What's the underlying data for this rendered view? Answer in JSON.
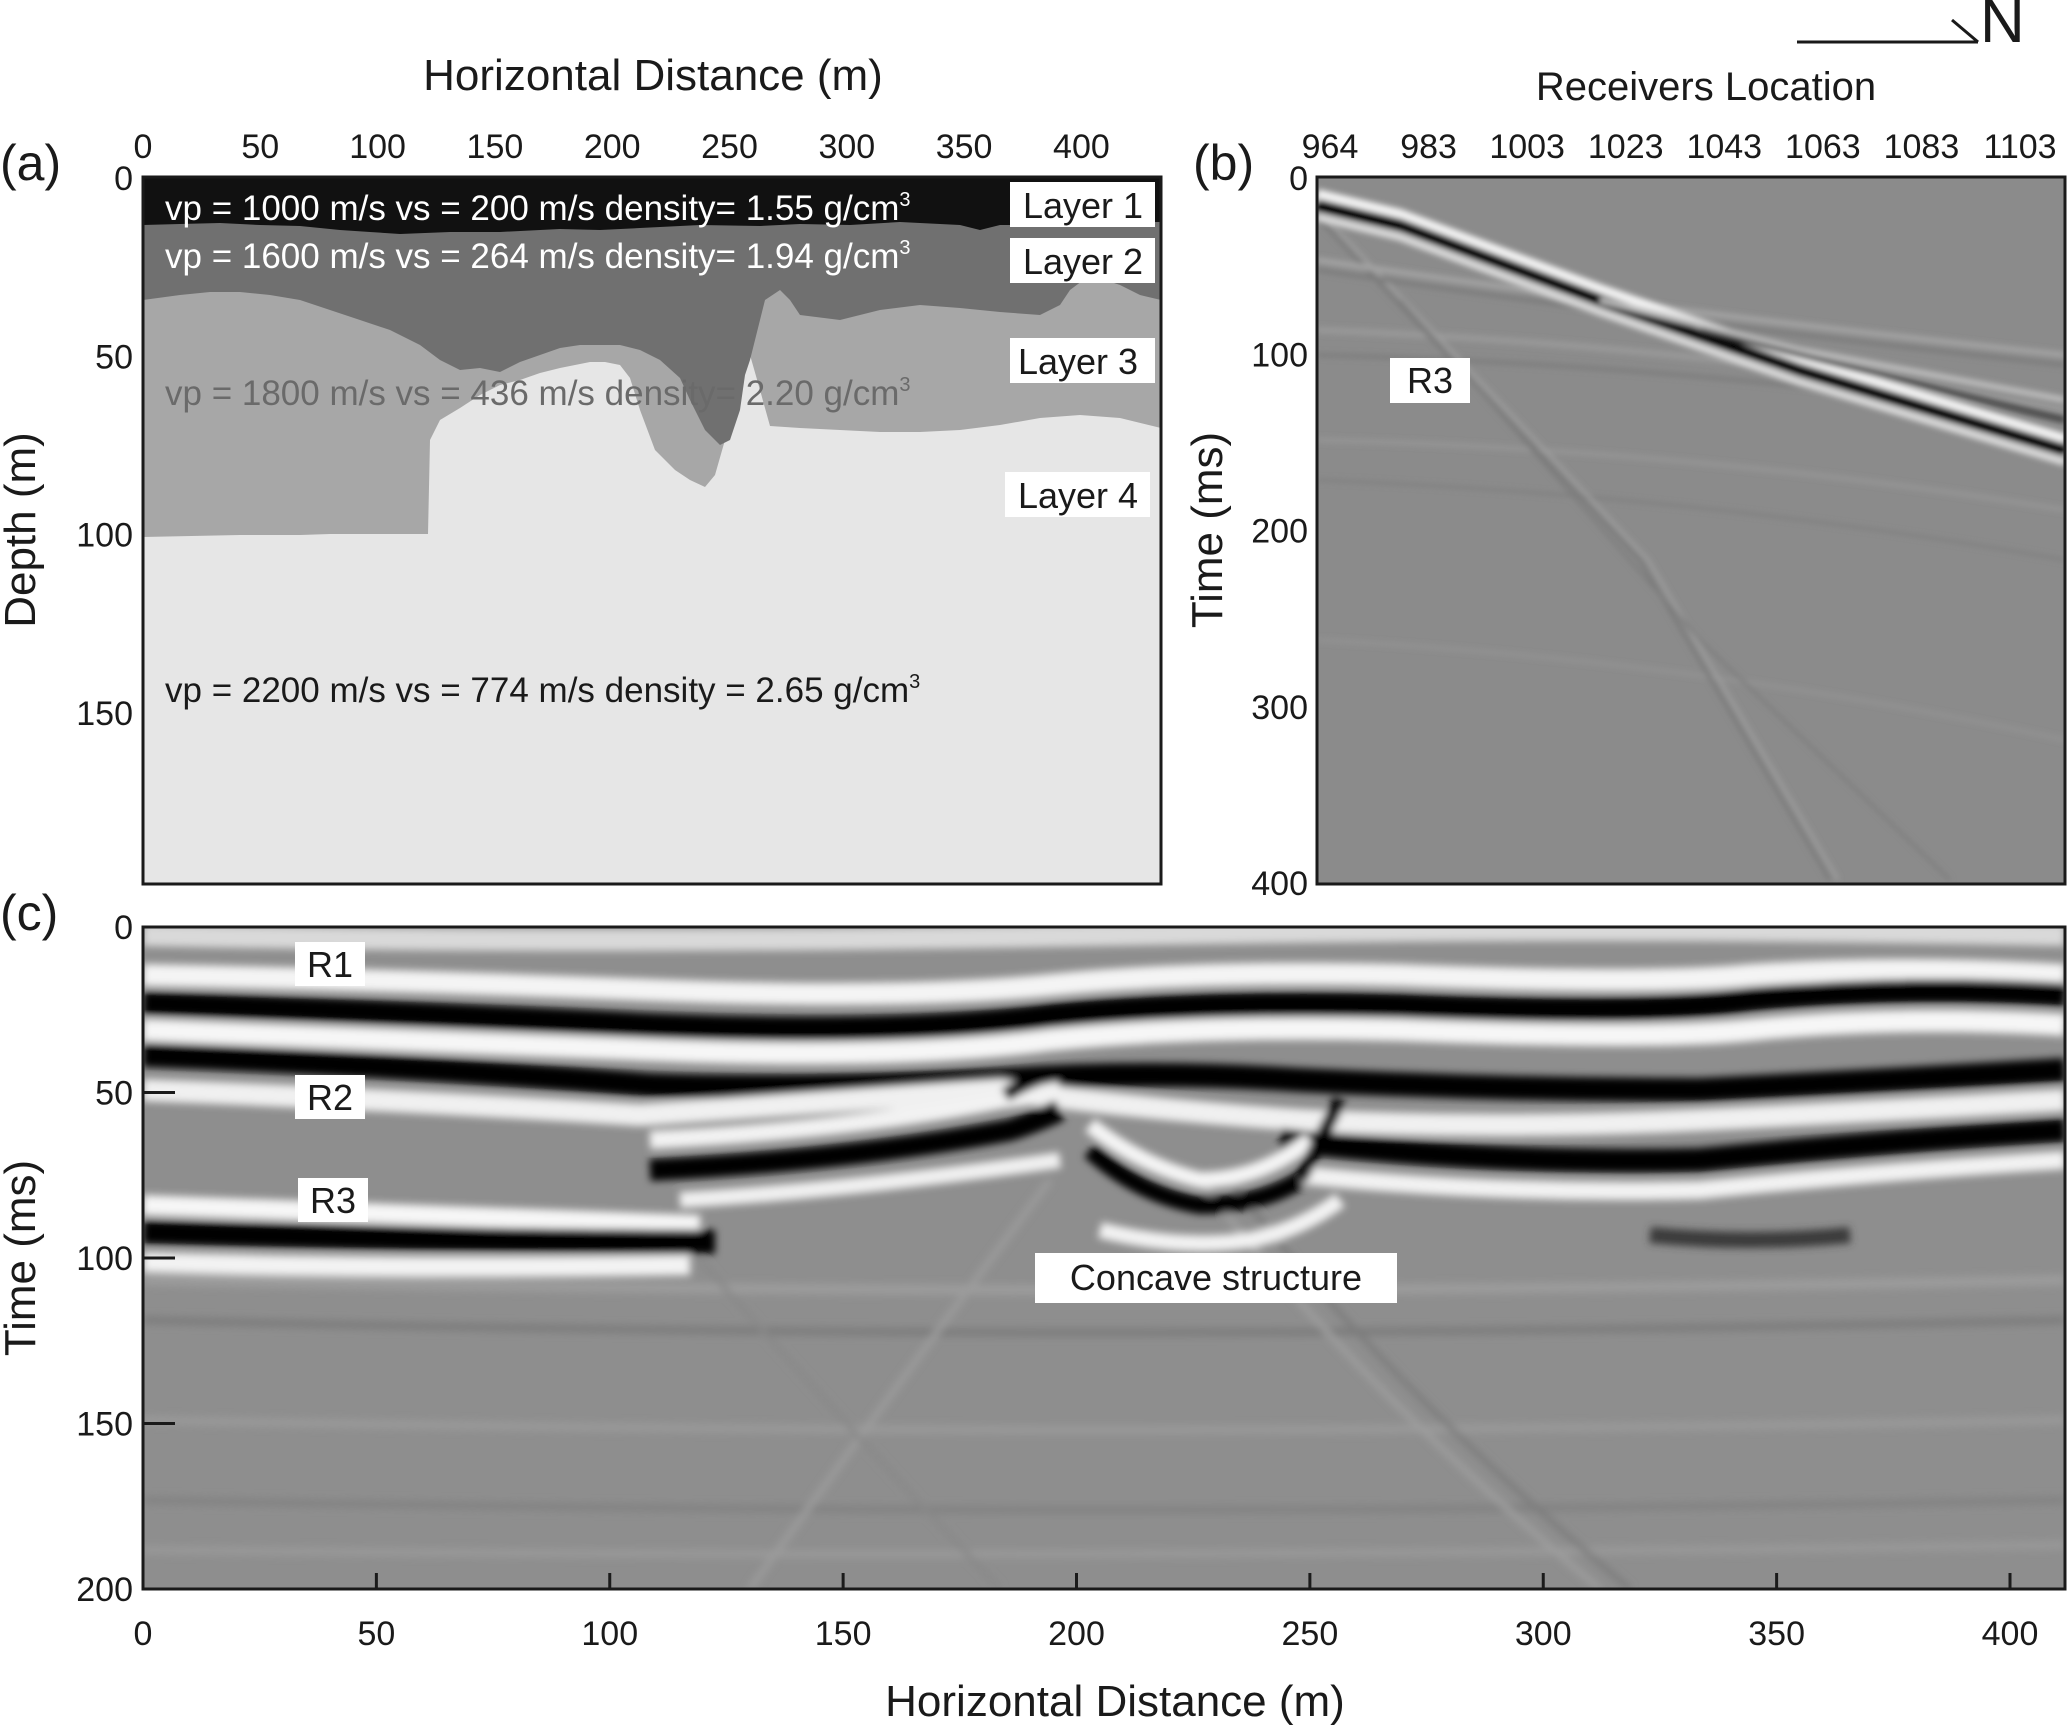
{
  "compass": {
    "label": "N"
  },
  "panel_a": {
    "panel_label": "(a)",
    "x_title": "Horizontal Distance (m)",
    "y_title": "Depth (m)",
    "x_ticks": [
      "0",
      "50",
      "100",
      "150",
      "200",
      "250",
      "300",
      "350",
      "400"
    ],
    "y_ticks": [
      "0",
      "50",
      "100",
      "150"
    ],
    "layers": [
      {
        "name": "Layer 1",
        "props": "vp = 1000 m/s vs = 200 m/s density= 1.55 g/cm",
        "sup": "3",
        "color": "#111111"
      },
      {
        "name": "Layer 2",
        "props": "vp = 1600 m/s vs = 264 m/s density= 1.94 g/cm",
        "sup": "3",
        "color": "#707070"
      },
      {
        "name": "Layer 3",
        "props": "vp = 1800 m/s vs = 436 m/s density= 2.20 g/cm",
        "sup": "3",
        "color": "#a7a7a7"
      },
      {
        "name": "Layer 4",
        "props": "vp = 2200 m/s vs = 774 m/s density = 2.65 g/cm",
        "sup": "3",
        "color": "#e6e6e6"
      }
    ]
  },
  "panel_b": {
    "panel_label": "(b)",
    "x_title": "Receivers Location",
    "y_title": "Time (ms)",
    "x_ticks": [
      "964",
      "983",
      "1003",
      "1023",
      "1043",
      "1063",
      "1083",
      "1103"
    ],
    "y_ticks": [
      "0",
      "100",
      "200",
      "300",
      "400"
    ],
    "annotation": "R3"
  },
  "panel_c": {
    "panel_label": "(c)",
    "x_title": "Horizontal Distance (m)",
    "y_title": "Time (ms)",
    "x_ticks": [
      "0",
      "50",
      "100",
      "150",
      "200",
      "250",
      "300",
      "350",
      "400"
    ],
    "y_ticks": [
      "0",
      "50",
      "100",
      "150",
      "200"
    ],
    "annotations": {
      "r1": "R1",
      "r2": "R2",
      "r3": "R3",
      "concave": "Concave structure"
    }
  }
}
